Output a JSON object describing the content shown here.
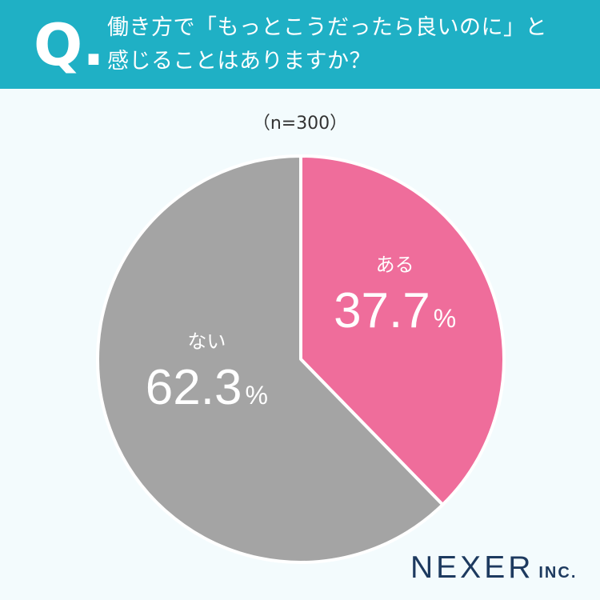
{
  "header": {
    "q_mark": "Q.",
    "title_line1": "働き方で「もっとこうだったら良いのに」と",
    "title_line2": "感じることはありますか？",
    "bg_color": "#1fb0c5"
  },
  "sample_size": "（n=300）",
  "chart_data": {
    "type": "pie",
    "title": "",
    "slices": [
      {
        "name": "ある",
        "value": 37.7,
        "value_label": "37.7",
        "unit": "%",
        "color": "#ef6d9b"
      },
      {
        "name": "ない",
        "value": 62.3,
        "value_label": "62.3",
        "unit": "%",
        "color": "#a4a4a4"
      }
    ],
    "start_angle": "12 o'clock",
    "direction": "clockwise",
    "slice_separator_color": "#ffffff"
  },
  "logo": {
    "main": "NEXER",
    "sub": "INC."
  }
}
